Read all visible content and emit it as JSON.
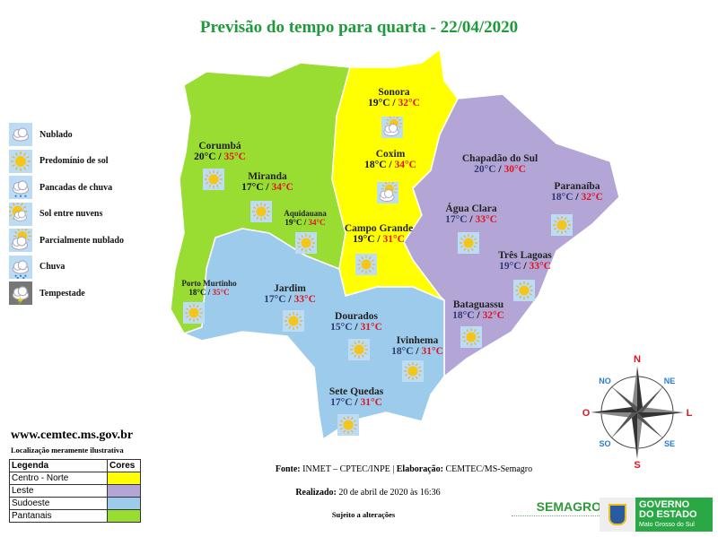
{
  "title": "Previsão do tempo para quarta - 22/04/2020",
  "legend_icons": [
    {
      "icon": "cloud-icon",
      "label": "Nublado"
    },
    {
      "icon": "sun-icon",
      "label": "Predomínio de sol"
    },
    {
      "icon": "showers-icon",
      "label": "Pancadas de chuva"
    },
    {
      "icon": "sun-cloud-icon",
      "label": "Sol entre nuvens"
    },
    {
      "icon": "partly-cloudy-icon",
      "label": "Parcialmente nublado"
    },
    {
      "icon": "rain-icon",
      "label": "Chuva"
    },
    {
      "icon": "storm-icon",
      "label": "Tempestade"
    }
  ],
  "regions": {
    "centro_norte": {
      "label": "Centro - Norte",
      "color": "#ffff00"
    },
    "leste": {
      "label": "Leste",
      "color": "#b3a6d6"
    },
    "sudoeste": {
      "label": "Sudoeste",
      "color": "#9ccbec"
    },
    "pantanais": {
      "label": "Pantanais",
      "color": "#99dd33"
    }
  },
  "cities": [
    {
      "name": "Corumbá",
      "min": "20°C",
      "max": "35°C",
      "icon": "sun-icon"
    },
    {
      "name": "Miranda",
      "min": "17°C",
      "max": "34°C",
      "icon": "sun-icon"
    },
    {
      "name": "Aquidauana",
      "min": "19°C",
      "max": "34°C",
      "icon": "sun-icon"
    },
    {
      "name": "Porto Murtinho",
      "min": "18°C",
      "max": "35°C",
      "icon": "sun-icon"
    },
    {
      "name": "Sonora",
      "min": "19°C",
      "max": "32°C",
      "icon": "partly-cloudy-icon"
    },
    {
      "name": "Coxim",
      "min": "18°C",
      "max": "34°C",
      "icon": "partly-cloudy-icon"
    },
    {
      "name": "Campo Grande",
      "min": "19°C",
      "max": "31°C",
      "icon": "sun-icon"
    },
    {
      "name": "Jardim",
      "min": "17°C",
      "max": "33°C",
      "icon": "sun-icon"
    },
    {
      "name": "Dourados",
      "min": "15°C",
      "max": "31°C",
      "icon": "sun-icon"
    },
    {
      "name": "Ivinhema",
      "min": "18°C",
      "max": "31°C",
      "icon": "sun-icon"
    },
    {
      "name": "Sete Quedas",
      "min": "17°C",
      "max": "31°C",
      "icon": "sun-icon"
    },
    {
      "name": "Chapadão do Sul",
      "min": "20°C",
      "max": "30°C",
      "icon": ""
    },
    {
      "name": "Paranaíba",
      "min": "18°C",
      "max": "32°C",
      "icon": "sun-icon"
    },
    {
      "name": "Água Clara",
      "min": "17°C",
      "max": "33°C",
      "icon": "sun-icon"
    },
    {
      "name": "Três Lagoas",
      "min": "19°C",
      "max": "33°C",
      "icon": "sun-icon"
    },
    {
      "name": "Bataguassu",
      "min": "18°C",
      "max": "32°C",
      "icon": "sun-icon"
    }
  ],
  "site": "www.cemtec.ms.gov.br",
  "note": "Localização meramente ilustrativa",
  "legend_table": {
    "header_label": "Legenda",
    "header_colors": "Cores"
  },
  "footer": {
    "fonte_label": "Fonte:",
    "fonte_value": "INMET – CPTEC/INPE |",
    "elab_label": "Elaboração:",
    "elab_value": "CEMTEC/MS-Semagro",
    "realizado_label": "Realizado:",
    "realizado_value": "20 de abril de 2020 às 16:36",
    "sujeito": "Sujeito a alterações"
  },
  "compass": {
    "n": "N",
    "s": "S",
    "l": "L",
    "o": "O",
    "ne": "NE",
    "no": "NO",
    "se": "SE",
    "so": "SO"
  },
  "logos": {
    "semagro": "SEMAGRO",
    "governo_line1": "GOVERNO",
    "governo_line2": "DO ESTADO",
    "governo_line3": "Mato Grosso do Sul"
  }
}
